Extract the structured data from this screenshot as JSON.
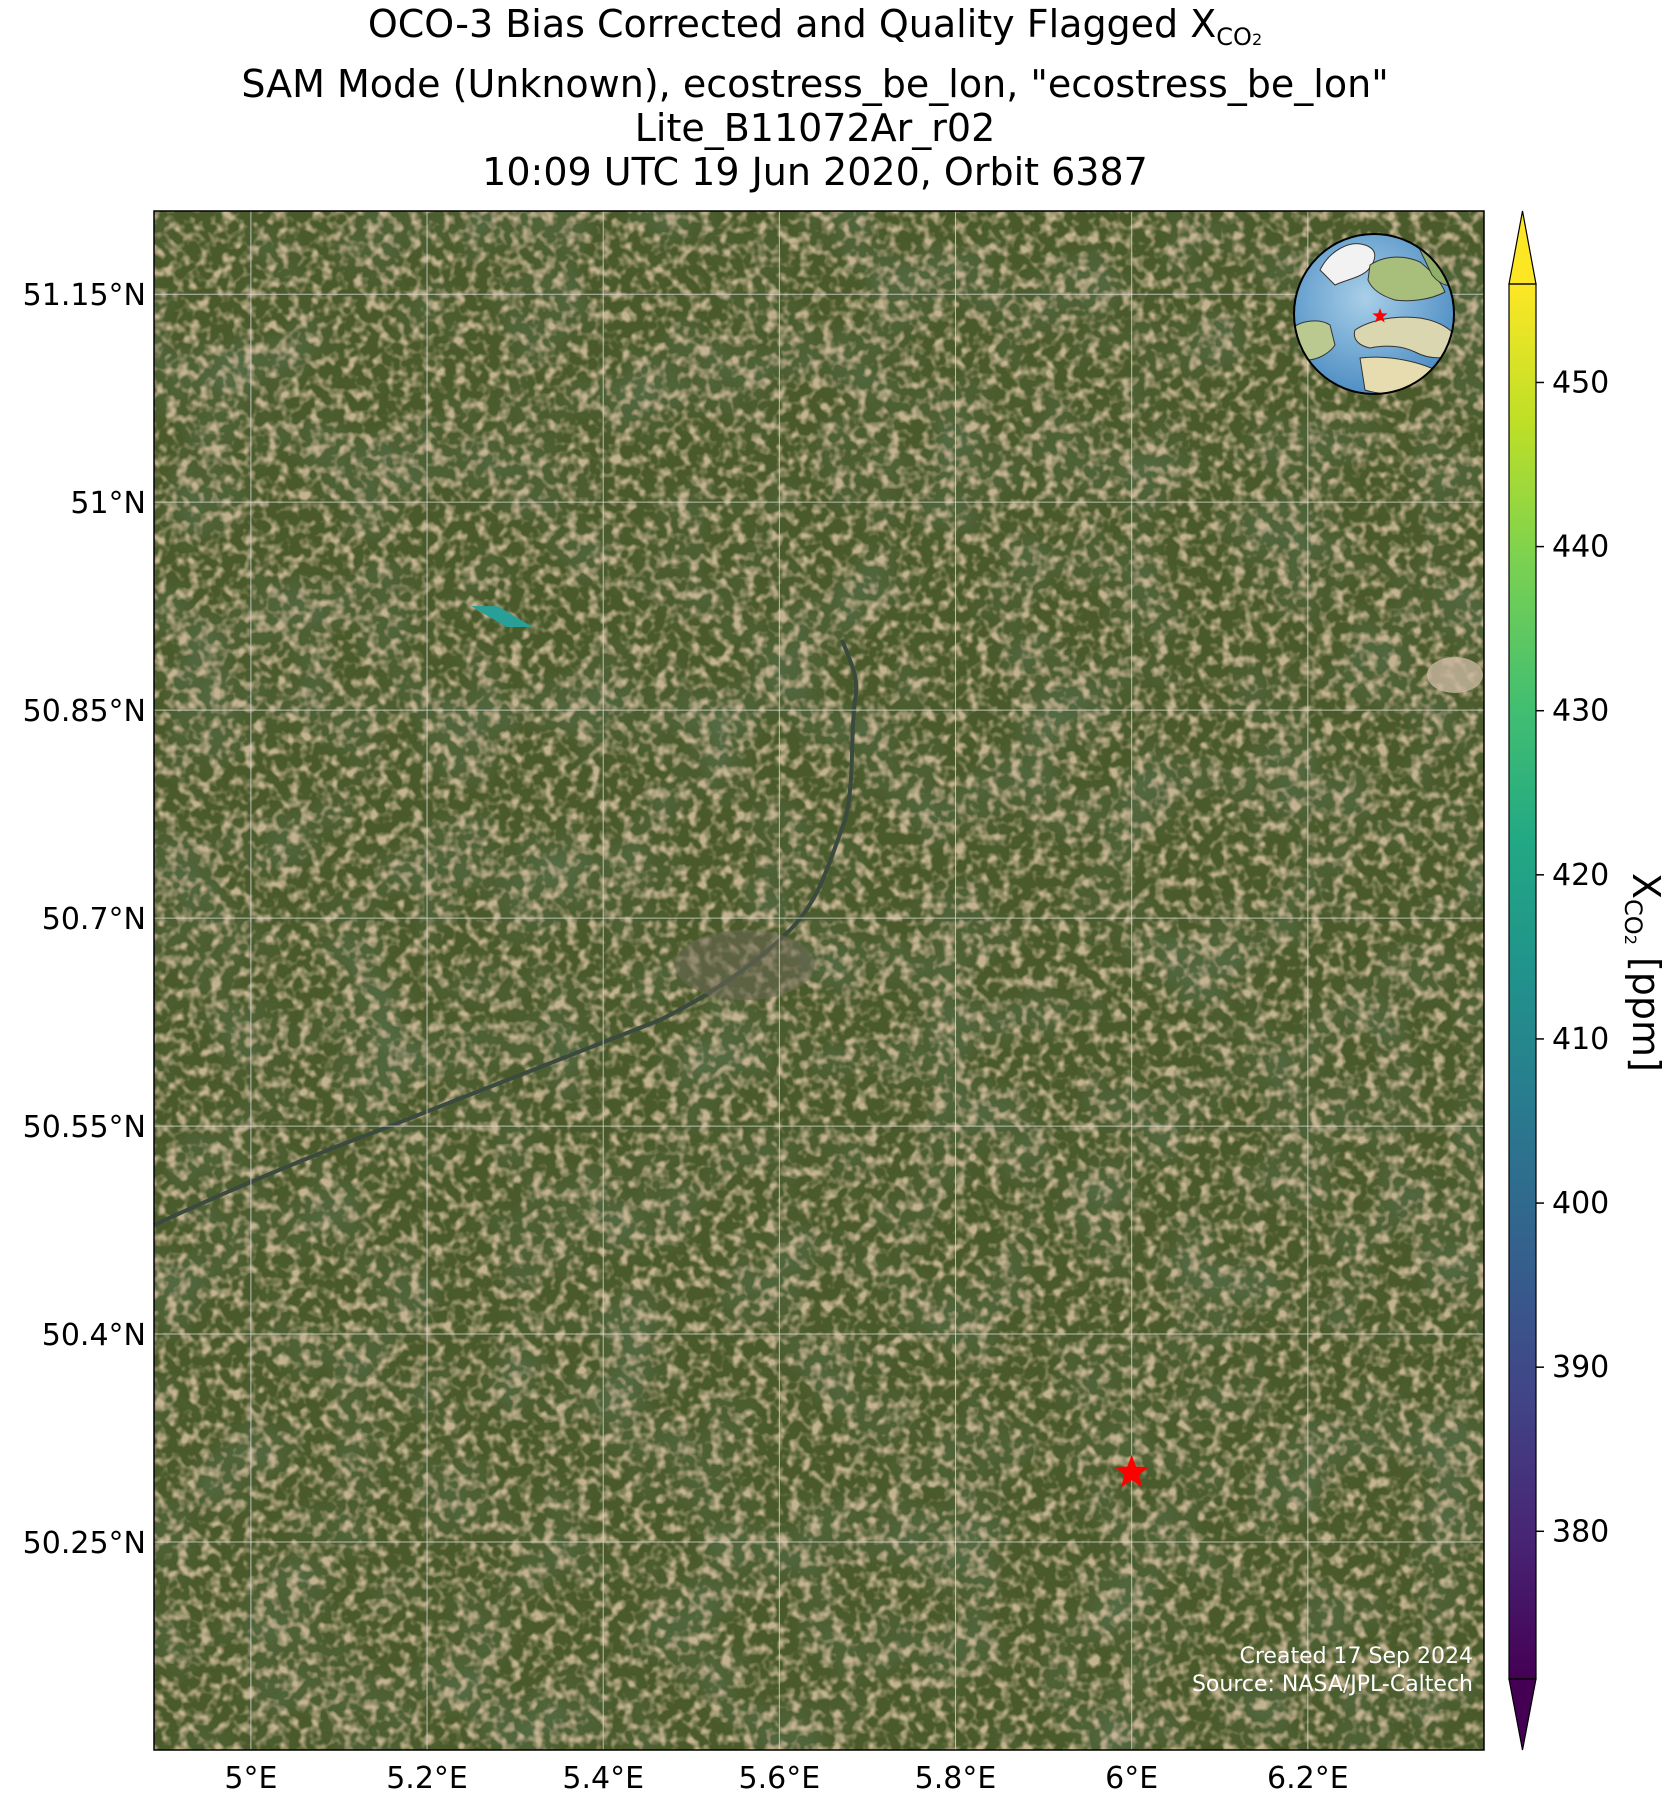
{
  "title": {
    "line1_prefix": "OCO-3 Bias Corrected and Quality Flagged X",
    "line1_sub": "CO",
    "line1_sub2": "2",
    "line2": "SAM Mode (Unknown), ecostress_be_lon, \"ecostress_be_lon\"",
    "line3": "Lite_B11072Ar_r02",
    "line4": "10:09 UTC 19 Jun 2020, Orbit 6387"
  },
  "map": {
    "lon_range": [
      4.89,
      6.4
    ],
    "lat_range": [
      50.1,
      51.21
    ],
    "lat_ticks": [
      {
        "value": 51.15,
        "label": "51.15°N"
      },
      {
        "value": 51.0,
        "label": "51°N"
      },
      {
        "value": 50.85,
        "label": "50.85°N"
      },
      {
        "value": 50.7,
        "label": "50.7°N"
      },
      {
        "value": 50.55,
        "label": "50.55°N"
      },
      {
        "value": 50.4,
        "label": "50.4°N"
      },
      {
        "value": 50.25,
        "label": "50.25°N"
      }
    ],
    "lon_ticks": [
      {
        "value": 5.0,
        "label": "5°E"
      },
      {
        "value": 5.2,
        "label": "5.2°E"
      },
      {
        "value": 5.4,
        "label": "5.4°E"
      },
      {
        "value": 5.6,
        "label": "5.6°E"
      },
      {
        "value": 5.8,
        "label": "5.8°E"
      },
      {
        "value": 6.0,
        "label": "6°E"
      },
      {
        "value": 6.2,
        "label": "6.2°E"
      }
    ],
    "grid": true,
    "basemap": "satellite-imagery",
    "target_marker": {
      "lon": 6.0,
      "lat": 50.3,
      "color": "#ff0000",
      "shape": "star-icon"
    },
    "sounding": {
      "xco2": 413,
      "color": "#2a9f98",
      "corners": [
        [
          5.25,
          50.925
        ],
        [
          5.28,
          50.925
        ],
        [
          5.32,
          50.91
        ],
        [
          5.29,
          50.91
        ]
      ]
    }
  },
  "inset_globe": {
    "center_lon": 5.5,
    "center_lat": 50.5,
    "marker_color": "#ff0000"
  },
  "colorbar": {
    "min": 371,
    "max": 456,
    "ticks": [
      380,
      390,
      400,
      410,
      420,
      430,
      440,
      450
    ],
    "label_prefix": "X",
    "label_sub": "CO",
    "label_sub2": "2",
    "label_suffix": " [ppm]",
    "colormap": "viridis",
    "extend": "both"
  },
  "credit": {
    "line1": "Created 17 Sep 2024",
    "line2": "Source: NASA/JPL-Caltech"
  }
}
